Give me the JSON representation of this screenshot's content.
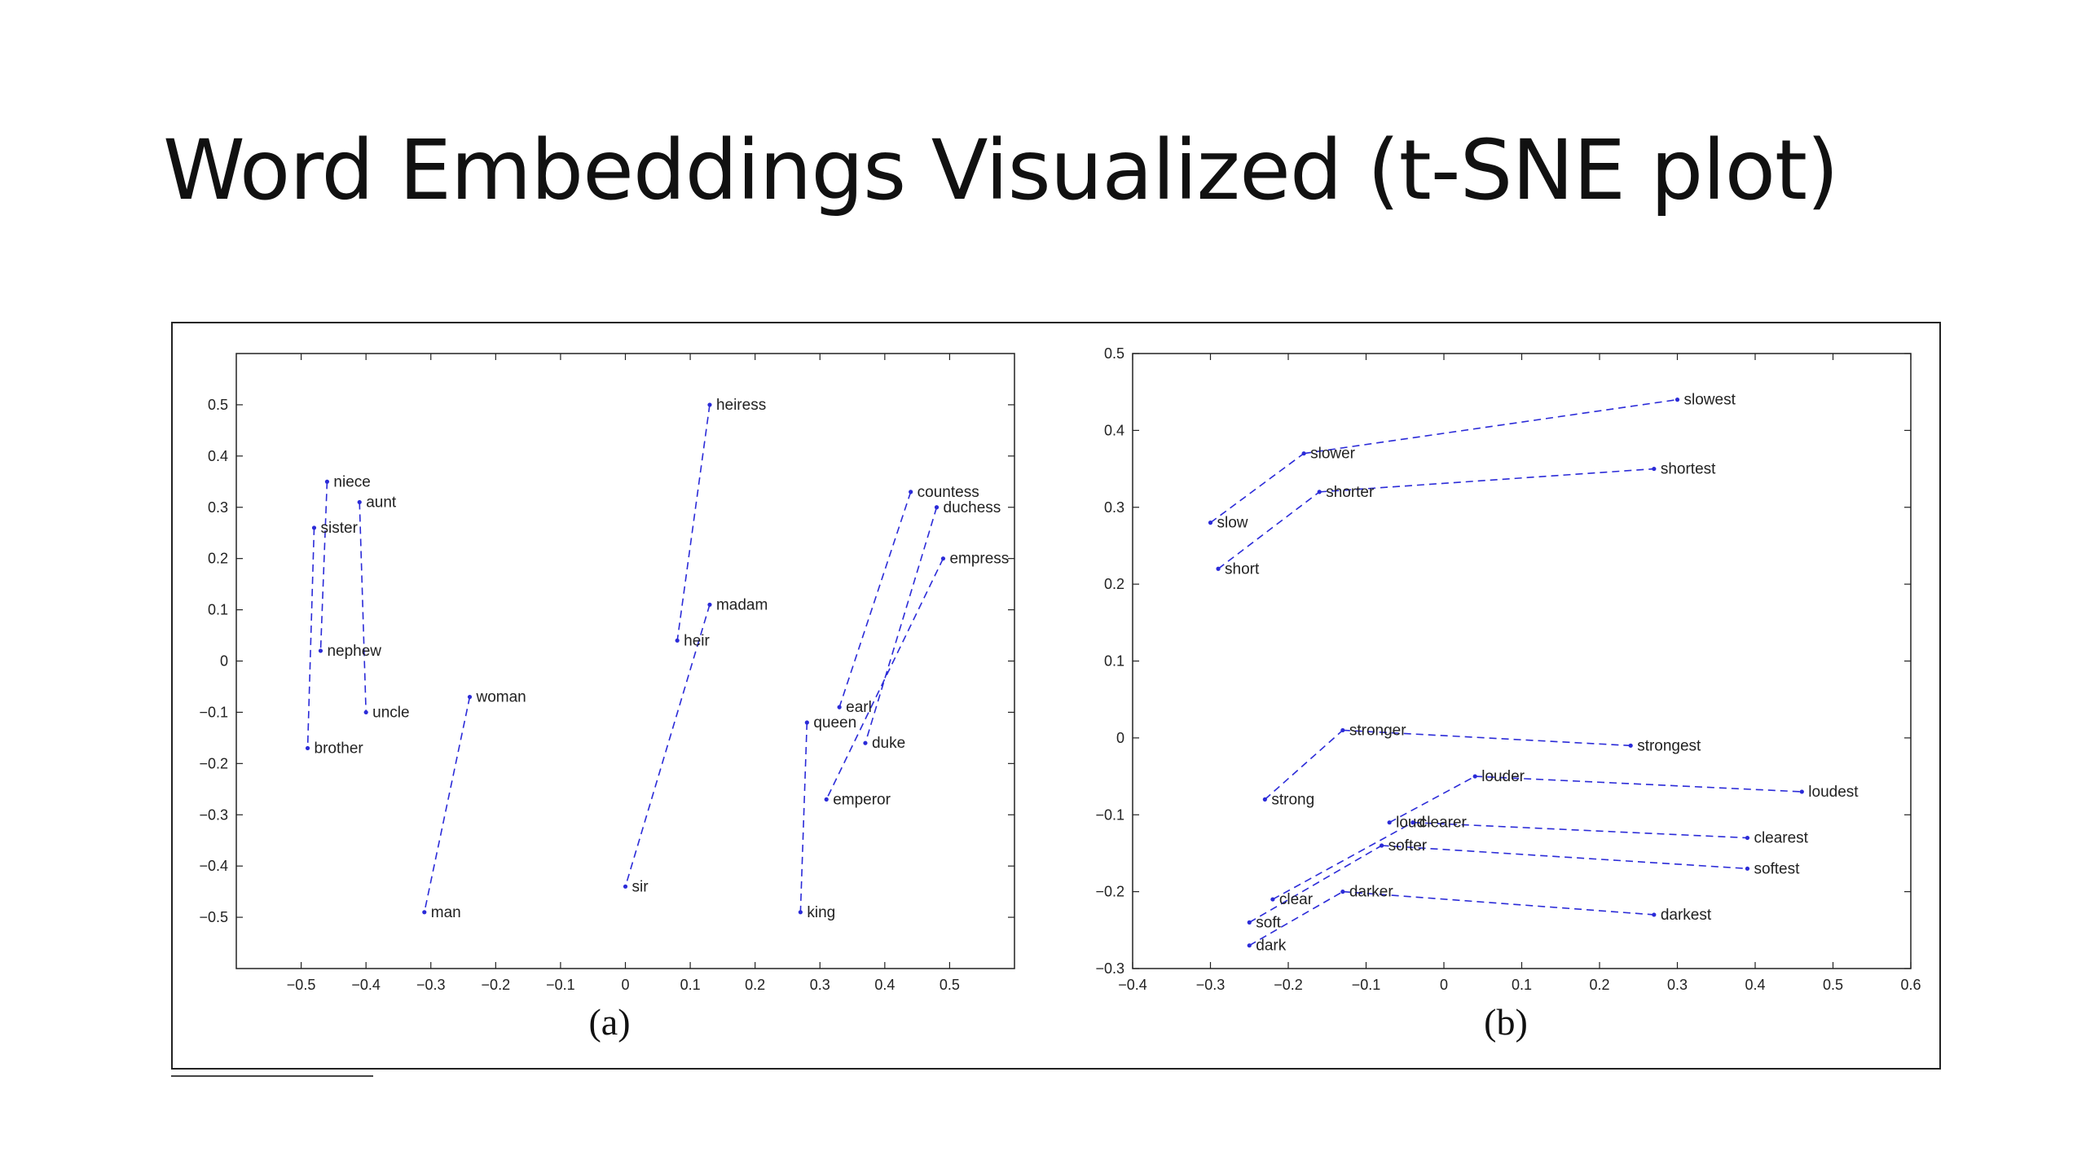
{
  "title": "Word Embeddings Visualized (t-SNE plot)",
  "colors": {
    "series": "#2b2bd8",
    "axis": "#222222",
    "text": "#111111"
  },
  "chart_data": [
    {
      "type": "scatter",
      "panel_label": "(a)",
      "xlim": [
        -0.6,
        0.6
      ],
      "ylim": [
        -0.6,
        0.6
      ],
      "xticks": [
        -0.5,
        -0.4,
        -0.3,
        -0.2,
        -0.1,
        0,
        0.1,
        0.2,
        0.3,
        0.4,
        0.5
      ],
      "xtick_labels": [
        "−0.5",
        "−0.4",
        "−0.3",
        "−0.2",
        "−0.1",
        "0",
        "0.1",
        "0.2",
        "0.3",
        "0.4",
        "0.5"
      ],
      "yticks": [
        -0.5,
        -0.4,
        -0.3,
        -0.2,
        -0.1,
        0,
        0.1,
        0.2,
        0.3,
        0.4,
        0.5
      ],
      "ytick_labels": [
        "−0.5",
        "−0.4",
        "−0.3",
        "−0.2",
        "−0.1",
        "0",
        "0.1",
        "0.2",
        "0.3",
        "0.4",
        "0.5"
      ],
      "grid": false,
      "points": [
        {
          "word": "niece",
          "x": -0.46,
          "y": 0.35
        },
        {
          "word": "aunt",
          "x": -0.41,
          "y": 0.31
        },
        {
          "word": "sister",
          "x": -0.48,
          "y": 0.26
        },
        {
          "word": "nephew",
          "x": -0.47,
          "y": 0.02
        },
        {
          "word": "uncle",
          "x": -0.4,
          "y": -0.1
        },
        {
          "word": "brother",
          "x": -0.49,
          "y": -0.17
        },
        {
          "word": "woman",
          "x": -0.24,
          "y": -0.07
        },
        {
          "word": "man",
          "x": -0.31,
          "y": -0.49
        },
        {
          "word": "heiress",
          "x": 0.13,
          "y": 0.5
        },
        {
          "word": "madam",
          "x": 0.13,
          "y": 0.11
        },
        {
          "word": "heir",
          "x": 0.08,
          "y": 0.04
        },
        {
          "word": "sir",
          "x": 0.0,
          "y": -0.44
        },
        {
          "word": "countess",
          "x": 0.44,
          "y": 0.33
        },
        {
          "word": "duchess",
          "x": 0.48,
          "y": 0.3
        },
        {
          "word": "empress",
          "x": 0.49,
          "y": 0.2
        },
        {
          "word": "earl",
          "x": 0.33,
          "y": -0.09
        },
        {
          "word": "queen",
          "x": 0.28,
          "y": -0.12
        },
        {
          "word": "duke",
          "x": 0.37,
          "y": -0.16
        },
        {
          "word": "emperor",
          "x": 0.31,
          "y": -0.27
        },
        {
          "word": "king",
          "x": 0.27,
          "y": -0.49
        }
      ],
      "links": [
        [
          "niece",
          "nephew"
        ],
        [
          "aunt",
          "uncle"
        ],
        [
          "sister",
          "brother"
        ],
        [
          "woman",
          "man"
        ],
        [
          "heiress",
          "heir"
        ],
        [
          "madam",
          "sir"
        ],
        [
          "countess",
          "earl"
        ],
        [
          "duchess",
          "duke"
        ],
        [
          "empress",
          "emperor"
        ],
        [
          "queen",
          "king"
        ]
      ]
    },
    {
      "type": "scatter",
      "panel_label": "(b)",
      "xlim": [
        -0.4,
        0.6
      ],
      "ylim": [
        -0.3,
        0.5
      ],
      "xticks": [
        -0.4,
        -0.3,
        -0.2,
        -0.1,
        0,
        0.1,
        0.2,
        0.3,
        0.4,
        0.5,
        0.6
      ],
      "xtick_labels": [
        "−0.4",
        "−0.3",
        "−0.2",
        "−0.1",
        "0",
        "0.1",
        "0.2",
        "0.3",
        "0.4",
        "0.5",
        "0.6"
      ],
      "yticks": [
        -0.3,
        -0.2,
        -0.1,
        0,
        0.1,
        0.2,
        0.3,
        0.4,
        0.5
      ],
      "ytick_labels": [
        "−0.3",
        "−0.2",
        "−0.1",
        "0",
        "0.1",
        "0.2",
        "0.3",
        "0.4",
        "0.5"
      ],
      "grid": false,
      "points": [
        {
          "word": "slowest",
          "x": 0.3,
          "y": 0.44
        },
        {
          "word": "slower",
          "x": -0.18,
          "y": 0.37
        },
        {
          "word": "shortest",
          "x": 0.27,
          "y": 0.35
        },
        {
          "word": "shorter",
          "x": -0.16,
          "y": 0.32
        },
        {
          "word": "slow",
          "x": -0.3,
          "y": 0.28
        },
        {
          "word": "short",
          "x": -0.29,
          "y": 0.22
        },
        {
          "word": "stronger",
          "x": -0.13,
          "y": 0.01
        },
        {
          "word": "strongest",
          "x": 0.24,
          "y": -0.01
        },
        {
          "word": "louder",
          "x": 0.04,
          "y": -0.05
        },
        {
          "word": "loudest",
          "x": 0.46,
          "y": -0.07
        },
        {
          "word": "strong",
          "x": -0.23,
          "y": -0.08
        },
        {
          "word": "loud",
          "x": -0.07,
          "y": -0.11
        },
        {
          "word": "clearer",
          "x": -0.04,
          "y": -0.11
        },
        {
          "word": "clearest",
          "x": 0.39,
          "y": -0.13
        },
        {
          "word": "softer",
          "x": -0.08,
          "y": -0.14
        },
        {
          "word": "softest",
          "x": 0.39,
          "y": -0.17
        },
        {
          "word": "clear",
          "x": -0.22,
          "y": -0.21
        },
        {
          "word": "darker",
          "x": -0.13,
          "y": -0.2
        },
        {
          "word": "darkest",
          "x": 0.27,
          "y": -0.23
        },
        {
          "word": "soft",
          "x": -0.25,
          "y": -0.24
        },
        {
          "word": "dark",
          "x": -0.25,
          "y": -0.27
        }
      ],
      "links": [
        [
          "slow",
          "slower"
        ],
        [
          "slower",
          "slowest"
        ],
        [
          "short",
          "shorter"
        ],
        [
          "shorter",
          "shortest"
        ],
        [
          "strong",
          "stronger"
        ],
        [
          "stronger",
          "strongest"
        ],
        [
          "loud",
          "louder"
        ],
        [
          "louder",
          "loudest"
        ],
        [
          "clear",
          "clearer"
        ],
        [
          "clearer",
          "clearest"
        ],
        [
          "soft",
          "softer"
        ],
        [
          "softer",
          "softest"
        ],
        [
          "dark",
          "darker"
        ],
        [
          "darker",
          "darkest"
        ]
      ]
    }
  ]
}
